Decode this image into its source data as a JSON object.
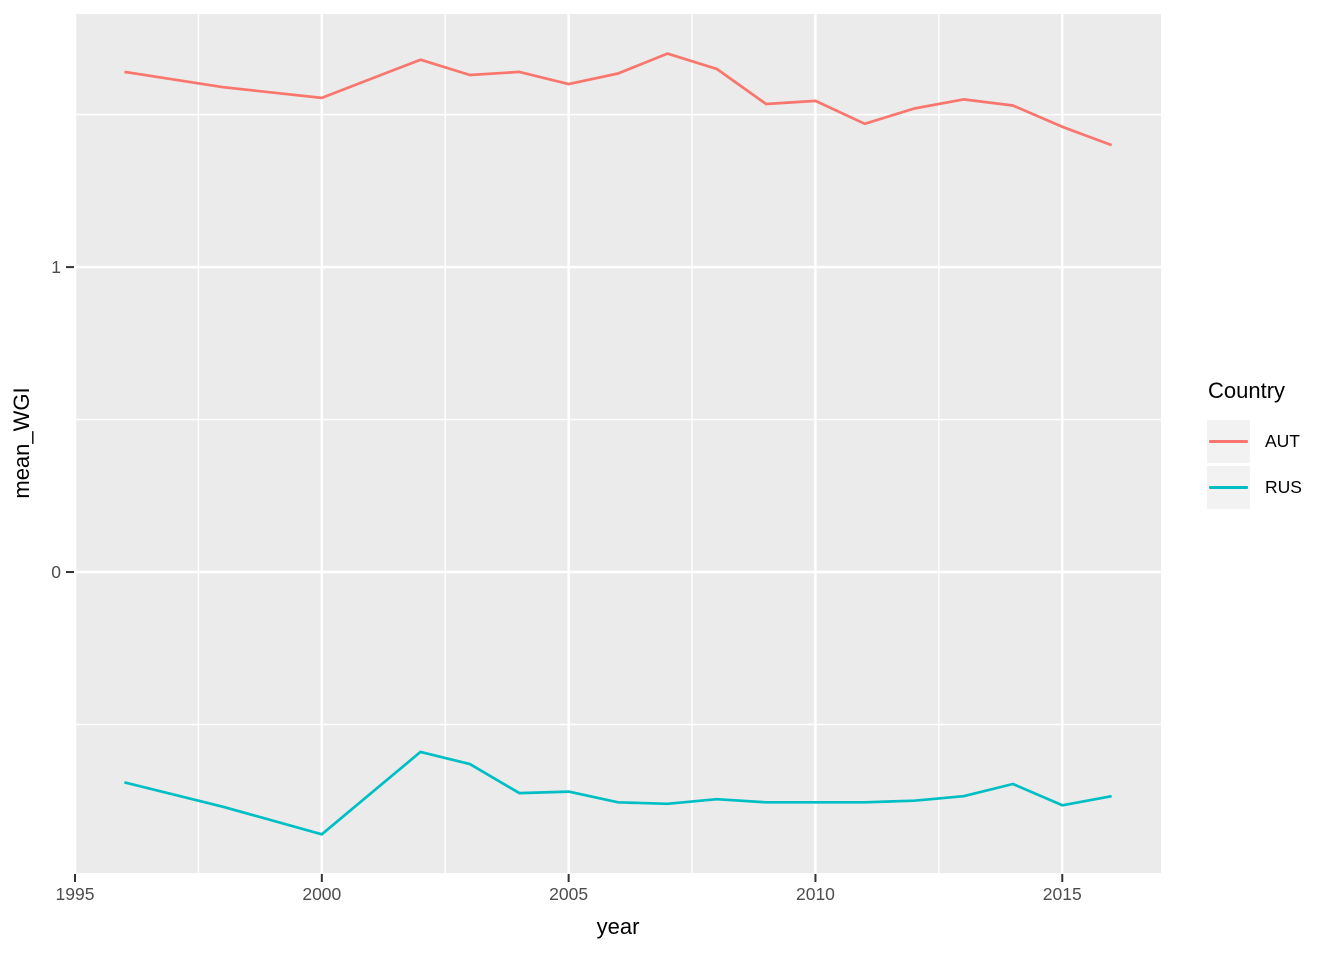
{
  "chart_data": {
    "type": "line",
    "title": "",
    "xlabel": "year",
    "ylabel": "mean_WGI",
    "xlim": [
      1995,
      2017
    ],
    "ylim": [
      -0.987,
      1.83
    ],
    "x_major_ticks": [
      1995,
      2000,
      2005,
      2010,
      2015
    ],
    "x_minor_ticks": [
      1997.5,
      2002.5,
      2007.5,
      2012.5
    ],
    "y_major_ticks": [
      0,
      1
    ],
    "y_minor_ticks": [
      -0.5,
      0.5,
      1.5
    ],
    "grid": true,
    "x": [
      1996,
      1998,
      2000,
      2002,
      2003,
      2004,
      2005,
      2006,
      2007,
      2008,
      2009,
      2010,
      2011,
      2012,
      2013,
      2014,
      2015,
      2016
    ],
    "series": [
      {
        "name": "AUT",
        "color": "#F8766D",
        "values": [
          1.64,
          1.59,
          1.555,
          1.68,
          1.63,
          1.64,
          1.6,
          1.635,
          1.7,
          1.65,
          1.535,
          1.545,
          1.47,
          1.52,
          1.55,
          1.53,
          1.46,
          1.4
        ]
      },
      {
        "name": "RUS",
        "color": "#00BFC4",
        "values": [
          -0.69,
          -0.77,
          -0.86,
          -0.59,
          -0.63,
          -0.725,
          -0.72,
          -0.755,
          -0.76,
          -0.745,
          -0.755,
          -0.755,
          -0.755,
          -0.75,
          -0.735,
          -0.695,
          -0.765,
          -0.735
        ]
      }
    ],
    "legend": {
      "title": "Country",
      "position": "right",
      "entries": [
        "AUT",
        "RUS"
      ]
    }
  },
  "style": {
    "panel_bg": "#EBEBEB",
    "grid_color": "#FFFFFF",
    "tick_color": "#333333",
    "tick_label_color": "#4D4D4D",
    "axis_title_color": "#000000",
    "legend_key_bg": "#F2F2F2"
  }
}
